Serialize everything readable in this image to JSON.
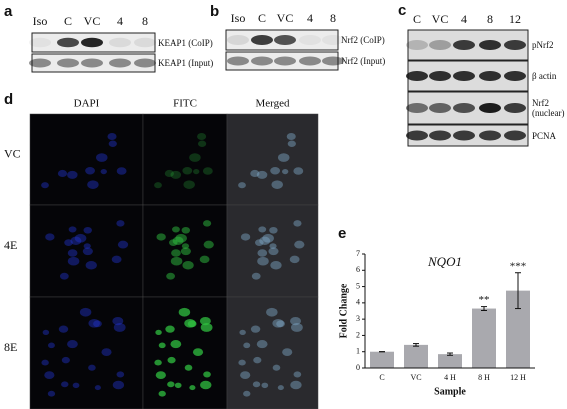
{
  "panels": {
    "a": {
      "label": "a",
      "lanes": [
        "Iso",
        "C",
        "VC",
        "4",
        "8"
      ],
      "rows": [
        "KEAP1 (CoIP)",
        "KEAP1 (Input)"
      ]
    },
    "b": {
      "label": "b",
      "lanes": [
        "Iso",
        "C",
        "VC",
        "4",
        "8"
      ],
      "rows": [
        "Nrf2 (CoIP)",
        "Nrf2 (Input)"
      ]
    },
    "c": {
      "label": "c",
      "lanes": [
        "C",
        "VC",
        "4",
        "8",
        "12"
      ],
      "rows": [
        "pNrf2",
        "β actin",
        "Nrf2 (nuclear)",
        "PCNA"
      ]
    },
    "d": {
      "label": "d",
      "columns": [
        "DAPI",
        "FITC",
        "Merged"
      ],
      "rows": [
        "VC",
        "4E",
        "8E"
      ]
    },
    "e": {
      "label": "e"
    }
  },
  "chart_data": {
    "type": "bar",
    "title": "NQO1",
    "xlabel": "Sample",
    "ylabel": "Fold Change",
    "categories": [
      "C",
      "VC",
      "4 H",
      "8 H",
      "12 H"
    ],
    "values": [
      1,
      1.42,
      0.85,
      3.65,
      4.75
    ],
    "errors": [
      0,
      0.08,
      0.07,
      0.12,
      1.1
    ],
    "significance": [
      null,
      null,
      null,
      "**",
      "***"
    ],
    "color": "#a9a9ae",
    "ylim": [
      0,
      7
    ],
    "yticks": [
      0,
      1,
      2,
      3,
      4,
      5,
      6,
      7
    ]
  }
}
